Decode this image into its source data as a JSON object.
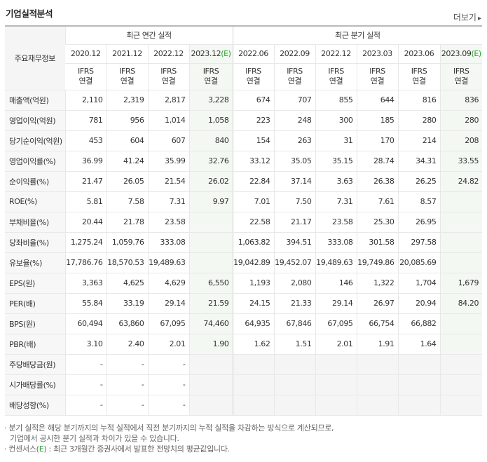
{
  "header": {
    "title": "기업실적분석",
    "more_label": "더보기",
    "more_arrow": "▸"
  },
  "table": {
    "corner_label": "주요재무정보",
    "group_annual": "최근 연간 실적",
    "group_quarter": "최근 분기 실적",
    "periods": [
      "2020.12",
      "2021.12",
      "2022.12",
      "2023.12(E)",
      "2022.06",
      "2022.09",
      "2022.12",
      "2023.03",
      "2023.06",
      "2023.09(E)"
    ],
    "ifrs_top": "IFRS",
    "ifrs_bottom": "연결",
    "rows": [
      {
        "label": "매출액(억원)",
        "values": [
          "2,110",
          "2,319",
          "2,817",
          "3,228",
          "674",
          "707",
          "855",
          "644",
          "816",
          "836"
        ]
      },
      {
        "label": "영업이익(억원)",
        "values": [
          "781",
          "956",
          "1,014",
          "1,058",
          "223",
          "248",
          "300",
          "185",
          "280",
          "280"
        ]
      },
      {
        "label": "당기순이익(억원)",
        "values": [
          "453",
          "604",
          "607",
          "840",
          "154",
          "263",
          "31",
          "170",
          "214",
          "208"
        ]
      },
      {
        "label": "영업이익률(%)",
        "values": [
          "36.99",
          "41.24",
          "35.99",
          "32.76",
          "33.12",
          "35.05",
          "35.15",
          "28.74",
          "34.31",
          "33.55"
        ]
      },
      {
        "label": "순이익률(%)",
        "values": [
          "21.47",
          "26.05",
          "21.54",
          "26.02",
          "22.84",
          "37.14",
          "3.63",
          "26.38",
          "26.25",
          "24.82"
        ]
      },
      {
        "label": "ROE(%)",
        "values": [
          "5.81",
          "7.58",
          "7.31",
          "9.97",
          "7.01",
          "7.50",
          "7.31",
          "7.61",
          "8.57",
          ""
        ]
      },
      {
        "label": "부채비율(%)",
        "values": [
          "20.44",
          "21.78",
          "23.58",
          "",
          "22.58",
          "21.17",
          "23.58",
          "25.30",
          "26.95",
          ""
        ]
      },
      {
        "label": "당좌비율(%)",
        "values": [
          "1,275.24",
          "1,059.76",
          "333.08",
          "",
          "1,063.82",
          "394.51",
          "333.08",
          "301.58",
          "297.58",
          ""
        ]
      },
      {
        "label": "유보율(%)",
        "values": [
          "17,786.76",
          "18,570.53",
          "19,489.63",
          "",
          "19,042.89",
          "19,452.07",
          "19,489.63",
          "19,749.86",
          "20,085.69",
          ""
        ]
      },
      {
        "label": "EPS(원)",
        "values": [
          "3,363",
          "4,625",
          "4,629",
          "6,550",
          "1,193",
          "2,080",
          "146",
          "1,322",
          "1,704",
          "1,679"
        ]
      },
      {
        "label": "PER(배)",
        "values": [
          "55.84",
          "33.19",
          "29.14",
          "21.59",
          "24.15",
          "21.33",
          "29.14",
          "26.97",
          "20.94",
          "84.20"
        ]
      },
      {
        "label": "BPS(원)",
        "values": [
          "60,494",
          "63,860",
          "67,095",
          "74,460",
          "64,935",
          "67,846",
          "67,095",
          "66,754",
          "66,882",
          ""
        ]
      },
      {
        "label": "PBR(배)",
        "values": [
          "3.10",
          "2.40",
          "2.01",
          "1.90",
          "1.62",
          "1.51",
          "2.01",
          "1.91",
          "1.64",
          ""
        ]
      },
      {
        "label": "주당배당금(원)",
        "values": [
          "-",
          "-",
          "-",
          "",
          "",
          "",
          "",
          "",
          "",
          ""
        ]
      },
      {
        "label": "시가배당률(%)",
        "values": [
          "-",
          "-",
          "-",
          "",
          "",
          "",
          "",
          "",
          "",
          ""
        ]
      },
      {
        "label": "배당성향(%)",
        "values": [
          "-",
          "-",
          "-",
          "",
          "",
          "",
          "",
          "",
          "",
          ""
        ]
      }
    ]
  },
  "notes": {
    "line1": "분기 실적은 해당 분기까지의 누적 실적에서 직전 분기까지의 누적 실적을 차감하는 방식으로 계산되므로,",
    "line2": "기업에서 공시한 분기 실적과 차이가 있을 수 있습니다.",
    "line3_pre": "컨센서스(",
    "line3_e": "E",
    "line3_post": ") : 최근 3개월간 증권사에서 발표한 전망치의 평균값입니다."
  }
}
